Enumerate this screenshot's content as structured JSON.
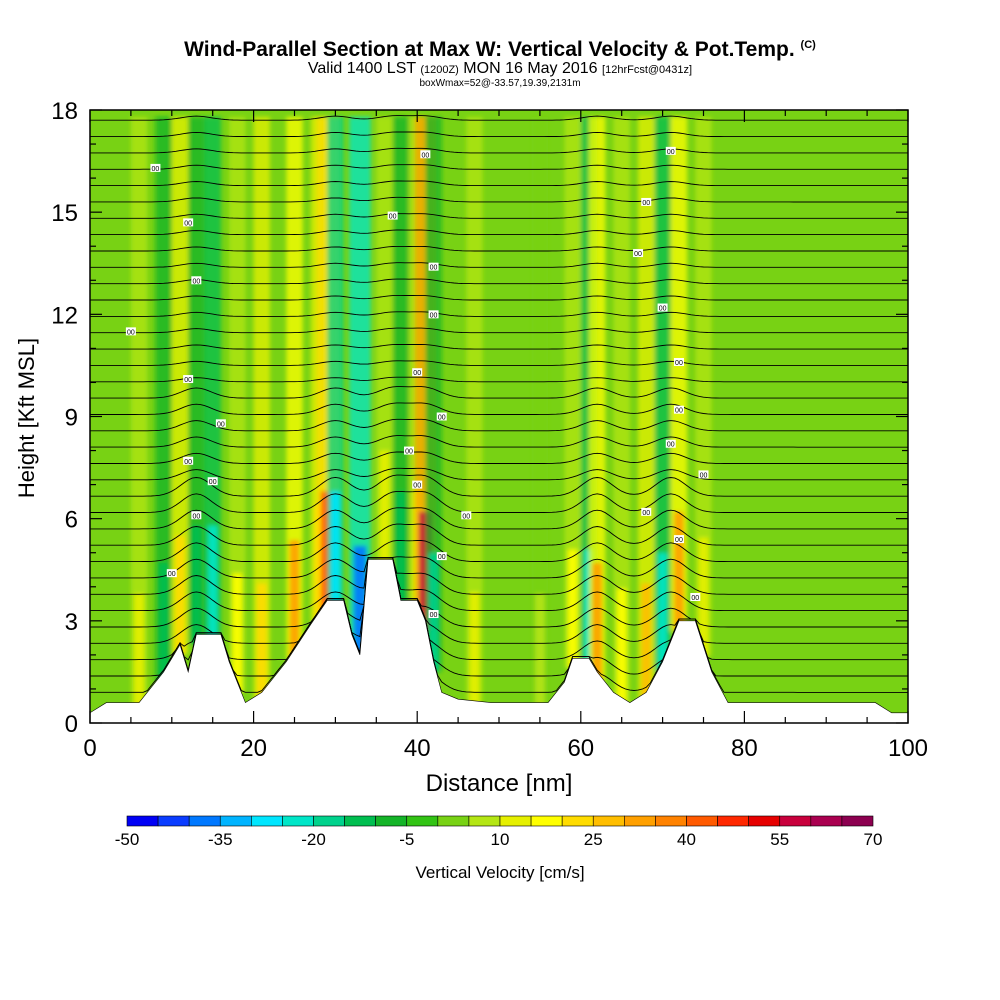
{
  "chart_data": {
    "type": "heatmap",
    "title": "Wind-Parallel Section at Max W: Vertical Velocity & Pot.Temp.",
    "title_mark": "(C)",
    "subtitle_main": "Valid 1400 LST",
    "subtitle_zulu": "(1200Z)",
    "subtitle_date": "MON 16 May 2016",
    "subtitle_fcst": "[12hrFcst@0431z]",
    "box_info": "boxWmax=52@-33.57,19.39,2131m",
    "xlabel": "Distance [nm]",
    "ylabel": "Height [Kft MSL]",
    "xlim": [
      0,
      100
    ],
    "ylim": [
      0,
      18
    ],
    "x_ticks": [
      "0",
      "20",
      "40",
      "60",
      "80",
      "100"
    ],
    "y_ticks": [
      "0",
      "3",
      "6",
      "9",
      "12",
      "15",
      "18"
    ],
    "colorbar": {
      "label": "Vertical Velocity [cm/s]",
      "ticks": [
        "-50",
        "-35",
        "-20",
        "-5",
        "10",
        "25",
        "40",
        "55",
        "70"
      ],
      "range": [
        -50,
        70
      ],
      "colors": [
        "#0000f5",
        "#0a3cff",
        "#0078ff",
        "#00b4ff",
        "#00e6ff",
        "#00e6c8",
        "#00d28c",
        "#00be50",
        "#14b428",
        "#32c314",
        "#78d214",
        "#b4e614",
        "#e6f000",
        "#ffff00",
        "#ffdc00",
        "#ffbe00",
        "#ffa000",
        "#ff8200",
        "#ff5a00",
        "#ff2800",
        "#e60000",
        "#c8003c",
        "#aa0050",
        "#8c0050"
      ]
    },
    "columns_w_cm_s": [
      {
        "x": 6,
        "w": 14
      },
      {
        "x": 9,
        "w": -15
      },
      {
        "x": 11,
        "w": 22
      },
      {
        "x": 13,
        "w": -12
      },
      {
        "x": 15,
        "w": -25
      },
      {
        "x": 18,
        "w": 16
      },
      {
        "x": 21,
        "w": 22
      },
      {
        "x": 25,
        "w": 30
      },
      {
        "x": 28,
        "w": 20
      },
      {
        "x": 29,
        "w": 42
      },
      {
        "x": 30,
        "w": -30
      },
      {
        "x": 33,
        "w": -40
      },
      {
        "x": 36,
        "w": 14
      },
      {
        "x": 38,
        "w": -15
      },
      {
        "x": 40,
        "w": 10
      },
      {
        "x": 41,
        "w": 55
      },
      {
        "x": 42,
        "w": -18
      },
      {
        "x": 47,
        "w": 12
      },
      {
        "x": 55,
        "w": 8
      },
      {
        "x": 59,
        "w": 18
      },
      {
        "x": 61,
        "w": -25
      },
      {
        "x": 62,
        "w": 30
      },
      {
        "x": 65,
        "w": 15
      },
      {
        "x": 68,
        "w": 25
      },
      {
        "x": 70,
        "w": -22
      },
      {
        "x": 72,
        "w": 30
      },
      {
        "x": 75,
        "w": 10
      }
    ],
    "terrain_kft": [
      {
        "x": 0,
        "h": 0.3
      },
      {
        "x": 2,
        "h": 0.6
      },
      {
        "x": 6,
        "h": 0.6
      },
      {
        "x": 9,
        "h": 1.5
      },
      {
        "x": 11,
        "h": 2.3
      },
      {
        "x": 12,
        "h": 1.5
      },
      {
        "x": 13,
        "h": 2.6
      },
      {
        "x": 16,
        "h": 2.6
      },
      {
        "x": 17,
        "h": 1.8
      },
      {
        "x": 19,
        "h": 0.6
      },
      {
        "x": 21,
        "h": 0.9
      },
      {
        "x": 24,
        "h": 1.8
      },
      {
        "x": 27,
        "h": 2.9
      },
      {
        "x": 29,
        "h": 3.6
      },
      {
        "x": 31,
        "h": 3.6
      },
      {
        "x": 32,
        "h": 2.6
      },
      {
        "x": 33,
        "h": 2.0
      },
      {
        "x": 34,
        "h": 4.8
      },
      {
        "x": 37,
        "h": 4.8
      },
      {
        "x": 38,
        "h": 3.6
      },
      {
        "x": 40,
        "h": 3.6
      },
      {
        "x": 41,
        "h": 3.0
      },
      {
        "x": 42,
        "h": 1.8
      },
      {
        "x": 43,
        "h": 0.9
      },
      {
        "x": 45,
        "h": 0.7
      },
      {
        "x": 49,
        "h": 0.6
      },
      {
        "x": 56,
        "h": 0.6
      },
      {
        "x": 58,
        "h": 1.2
      },
      {
        "x": 59,
        "h": 1.9
      },
      {
        "x": 61,
        "h": 1.9
      },
      {
        "x": 62,
        "h": 1.5
      },
      {
        "x": 64,
        "h": 0.9
      },
      {
        "x": 66,
        "h": 0.6
      },
      {
        "x": 68,
        "h": 0.9
      },
      {
        "x": 70,
        "h": 1.8
      },
      {
        "x": 72,
        "h": 3.0
      },
      {
        "x": 74,
        "h": 3.0
      },
      {
        "x": 76,
        "h": 1.5
      },
      {
        "x": 78,
        "h": 0.6
      },
      {
        "x": 96,
        "h": 0.6
      },
      {
        "x": 98,
        "h": 0.3
      },
      {
        "x": 100,
        "h": 0.3
      }
    ],
    "contour_labels": [
      {
        "x": 8,
        "y": 16.3,
        "text": "00"
      },
      {
        "x": 12,
        "y": 14.7,
        "text": "00"
      },
      {
        "x": 13,
        "y": 13.0,
        "text": "00"
      },
      {
        "x": 5,
        "y": 11.5,
        "text": "00"
      },
      {
        "x": 12,
        "y": 10.1,
        "text": "00"
      },
      {
        "x": 16,
        "y": 8.8,
        "text": "00"
      },
      {
        "x": 12,
        "y": 7.7,
        "text": "00"
      },
      {
        "x": 15,
        "y": 7.1,
        "text": "00"
      },
      {
        "x": 13,
        "y": 6.1,
        "text": "00"
      },
      {
        "x": 10,
        "y": 4.4,
        "text": "00"
      },
      {
        "x": 41,
        "y": 16.7,
        "text": "00"
      },
      {
        "x": 37,
        "y": 14.9,
        "text": "00"
      },
      {
        "x": 42,
        "y": 13.4,
        "text": "00"
      },
      {
        "x": 42,
        "y": 12.0,
        "text": "00"
      },
      {
        "x": 40,
        "y": 10.3,
        "text": "00"
      },
      {
        "x": 43,
        "y": 9.0,
        "text": "00"
      },
      {
        "x": 39,
        "y": 8.0,
        "text": "00"
      },
      {
        "x": 40,
        "y": 7.0,
        "text": "00"
      },
      {
        "x": 46,
        "y": 6.1,
        "text": "00"
      },
      {
        "x": 43,
        "y": 4.9,
        "text": "00"
      },
      {
        "x": 42,
        "y": 3.2,
        "text": "00"
      },
      {
        "x": 71,
        "y": 16.8,
        "text": "00"
      },
      {
        "x": 68,
        "y": 15.3,
        "text": "00"
      },
      {
        "x": 67,
        "y": 13.8,
        "text": "00"
      },
      {
        "x": 70,
        "y": 12.2,
        "text": "00"
      },
      {
        "x": 72,
        "y": 10.6,
        "text": "00"
      },
      {
        "x": 72,
        "y": 9.2,
        "text": "00"
      },
      {
        "x": 71,
        "y": 8.2,
        "text": "00"
      },
      {
        "x": 75,
        "y": 7.3,
        "text": "00"
      },
      {
        "x": 68,
        "y": 6.2,
        "text": "00"
      },
      {
        "x": 72,
        "y": 5.4,
        "text": "00"
      },
      {
        "x": 74,
        "y": 3.7,
        "text": "00"
      }
    ]
  }
}
